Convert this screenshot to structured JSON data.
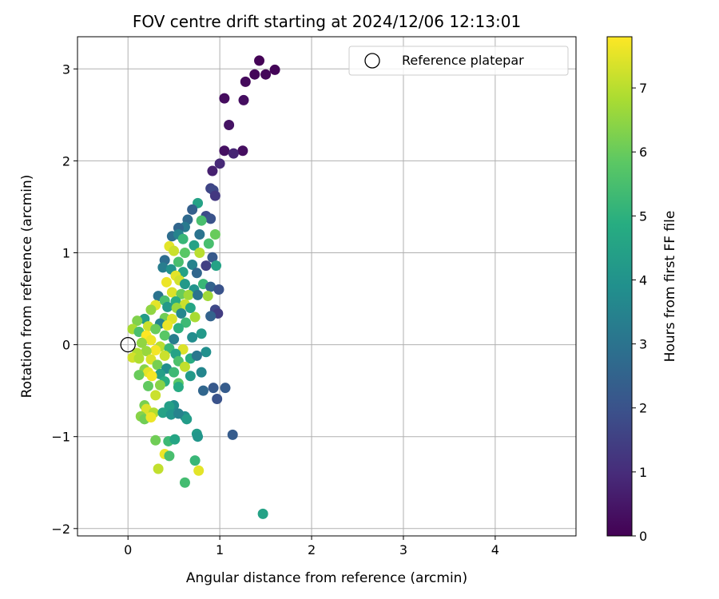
{
  "chart_data": {
    "type": "scatter",
    "title": "FOV centre drift starting at 2024/12/06 12:13:01",
    "xlabel": "Angular distance from reference (arcmin)",
    "ylabel": "Rotation from reference (arcmin)",
    "xlim": [
      -0.55,
      4.88
    ],
    "ylim": [
      -2.08,
      3.35
    ],
    "xticks": [
      0,
      1,
      2,
      3,
      4
    ],
    "yticks": [
      -2,
      -1,
      0,
      1,
      2,
      3
    ],
    "xtick_labels": [
      "0",
      "1",
      "2",
      "3",
      "4"
    ],
    "ytick_labels": [
      "−2",
      "−1",
      "0",
      "1",
      "2",
      "3"
    ],
    "grid": true,
    "legend": {
      "placement": "top-right",
      "entries": [
        {
          "label": "Reference platepar",
          "marker": "open-circle"
        }
      ]
    },
    "reference_point": {
      "x": 0,
      "y": 0
    },
    "colorbar": {
      "label": "Hours from first FF file",
      "min": 0,
      "max": 7.8,
      "ticks": [
        0,
        1,
        2,
        3,
        4,
        5,
        6,
        7
      ],
      "tick_labels": [
        "0",
        "1",
        "2",
        "3",
        "4",
        "5",
        "6",
        "7"
      ],
      "colormap": "viridis"
    },
    "points": [
      [
        1.43,
        3.09,
        0.05
      ],
      [
        1.6,
        2.99,
        0.1
      ],
      [
        1.5,
        2.94,
        0.15
      ],
      [
        1.38,
        2.94,
        0.1
      ],
      [
        1.28,
        2.86,
        0.2
      ],
      [
        1.05,
        2.68,
        0.25
      ],
      [
        1.26,
        2.66,
        0.3
      ],
      [
        1.1,
        2.39,
        0.4
      ],
      [
        1.05,
        2.11,
        0.35
      ],
      [
        1.25,
        2.11,
        0.3
      ],
      [
        1.15,
        2.08,
        0.8
      ],
      [
        1.0,
        1.97,
        0.9
      ],
      [
        0.92,
        1.89,
        0.7
      ],
      [
        0.9,
        1.7,
        1.6
      ],
      [
        0.93,
        1.68,
        1.7
      ],
      [
        0.95,
        1.62,
        1.3
      ],
      [
        0.76,
        1.54,
        4.5
      ],
      [
        0.7,
        1.47,
        2.4
      ],
      [
        0.85,
        1.4,
        1.8
      ],
      [
        0.9,
        1.37,
        2.0
      ],
      [
        0.65,
        1.36,
        2.7
      ],
      [
        0.8,
        1.35,
        5.5
      ],
      [
        0.62,
        1.28,
        3.2
      ],
      [
        0.55,
        1.27,
        2.6
      ],
      [
        0.48,
        1.18,
        2.8
      ],
      [
        0.55,
        1.2,
        3.5
      ],
      [
        0.78,
        1.2,
        3.0
      ],
      [
        0.95,
        1.2,
        6.0
      ],
      [
        0.6,
        1.15,
        5.2
      ],
      [
        0.72,
        1.08,
        4.5
      ],
      [
        0.45,
        1.07,
        7.5
      ],
      [
        0.88,
        1.1,
        5.5
      ],
      [
        0.5,
        1.02,
        7.2
      ],
      [
        0.62,
        1.0,
        5.8
      ],
      [
        0.78,
        1.0,
        7.0
      ],
      [
        0.92,
        0.95,
        2.2
      ],
      [
        0.4,
        0.92,
        2.8
      ],
      [
        0.55,
        0.9,
        5.5
      ],
      [
        0.7,
        0.87,
        3.5
      ],
      [
        0.85,
        0.86,
        1.5
      ],
      [
        0.96,
        0.86,
        4.5
      ],
      [
        0.38,
        0.84,
        3.3
      ],
      [
        0.47,
        0.82,
        4.0
      ],
      [
        0.6,
        0.79,
        4.5
      ],
      [
        0.75,
        0.78,
        2.6
      ],
      [
        0.52,
        0.75,
        7.5
      ],
      [
        0.56,
        0.7,
        7.3
      ],
      [
        0.62,
        0.66,
        4.2
      ],
      [
        0.42,
        0.68,
        7.6
      ],
      [
        0.82,
        0.66,
        5.2
      ],
      [
        0.9,
        0.63,
        2.5
      ],
      [
        0.99,
        0.6,
        2.0
      ],
      [
        0.72,
        0.6,
        4.0
      ],
      [
        0.48,
        0.57,
        7.4
      ],
      [
        0.58,
        0.55,
        6.0
      ],
      [
        0.66,
        0.54,
        6.7
      ],
      [
        0.76,
        0.54,
        3.0
      ],
      [
        0.87,
        0.53,
        6.7
      ],
      [
        0.33,
        0.53,
        3.0
      ],
      [
        0.4,
        0.48,
        5.5
      ],
      [
        0.52,
        0.47,
        4.8
      ],
      [
        0.62,
        0.44,
        7.2
      ],
      [
        0.3,
        0.43,
        7.5
      ],
      [
        0.43,
        0.41,
        4.2
      ],
      [
        0.53,
        0.4,
        6.6
      ],
      [
        0.68,
        0.4,
        4.6
      ],
      [
        0.95,
        0.38,
        1.7
      ],
      [
        0.25,
        0.38,
        6.5
      ],
      [
        0.98,
        0.34,
        1.4
      ],
      [
        0.9,
        0.31,
        2.5
      ],
      [
        0.58,
        0.34,
        3.6
      ],
      [
        0.73,
        0.3,
        6.8
      ],
      [
        0.18,
        0.28,
        4.3
      ],
      [
        0.4,
        0.29,
        6.1
      ],
      [
        0.48,
        0.28,
        7.4
      ],
      [
        0.1,
        0.26,
        6.3
      ],
      [
        0.63,
        0.24,
        5.3
      ],
      [
        0.35,
        0.23,
        3.5
      ],
      [
        0.43,
        0.21,
        7.6
      ],
      [
        0.22,
        0.2,
        7.2
      ],
      [
        0.55,
        0.18,
        5.0
      ],
      [
        0.05,
        0.17,
        6.8
      ],
      [
        0.3,
        0.17,
        6.0
      ],
      [
        0.12,
        0.14,
        5.5
      ],
      [
        0.8,
        0.12,
        4.2
      ],
      [
        0.2,
        0.1,
        7.8
      ],
      [
        0.4,
        0.1,
        5.8
      ],
      [
        0.7,
        0.08,
        3.8
      ],
      [
        0.5,
        0.06,
        3.3
      ],
      [
        0.25,
        0.05,
        7.6
      ],
      [
        0.15,
        0.02,
        6.5
      ],
      [
        0.35,
        -0.02,
        7.0
      ],
      [
        0.45,
        -0.04,
        5.2
      ],
      [
        0.6,
        -0.05,
        7.4
      ],
      [
        0.3,
        -0.06,
        7.7
      ],
      [
        0.2,
        -0.07,
        6.6
      ],
      [
        0.1,
        -0.09,
        6.9
      ],
      [
        0.52,
        -0.1,
        4.5
      ],
      [
        0.4,
        -0.12,
        7.2
      ],
      [
        0.05,
        -0.14,
        7.3
      ],
      [
        0.12,
        -0.15,
        6.9
      ],
      [
        0.85,
        -0.08,
        3.9
      ],
      [
        0.68,
        -0.15,
        4.8
      ],
      [
        0.75,
        -0.12,
        3.1
      ],
      [
        0.25,
        -0.16,
        7.4
      ],
      [
        0.55,
        -0.18,
        5.6
      ],
      [
        0.32,
        -0.22,
        6.2
      ],
      [
        0.62,
        -0.24,
        7.1
      ],
      [
        0.42,
        -0.26,
        3.8
      ],
      [
        0.18,
        -0.27,
        6.4
      ],
      [
        0.22,
        -0.3,
        7.5
      ],
      [
        0.5,
        -0.3,
        5.3
      ],
      [
        0.35,
        -0.32,
        4.4
      ],
      [
        0.12,
        -0.33,
        6.0
      ],
      [
        0.68,
        -0.34,
        4.2
      ],
      [
        0.26,
        -0.34,
        7.7
      ],
      [
        0.8,
        -0.3,
        3.6
      ],
      [
        0.4,
        -0.4,
        4.9
      ],
      [
        0.55,
        -0.42,
        5.8
      ],
      [
        0.22,
        -0.45,
        5.9
      ],
      [
        0.35,
        -0.44,
        6.4
      ],
      [
        0.82,
        -0.5,
        2.6
      ],
      [
        0.93,
        -0.47,
        2.2
      ],
      [
        1.06,
        -0.47,
        2.3
      ],
      [
        0.97,
        -0.59,
        2.0
      ],
      [
        0.3,
        -0.55,
        7.2
      ],
      [
        0.55,
        -0.46,
        4.8
      ],
      [
        0.5,
        -0.66,
        3.8
      ],
      [
        0.45,
        -0.67,
        4.4
      ],
      [
        0.18,
        -0.66,
        6.2
      ],
      [
        0.2,
        -0.7,
        7.4
      ],
      [
        0.28,
        -0.74,
        6.9
      ],
      [
        0.38,
        -0.74,
        4.5
      ],
      [
        0.47,
        -0.76,
        4.1
      ],
      [
        0.62,
        -0.78,
        3.9
      ],
      [
        0.14,
        -0.78,
        6.4
      ],
      [
        0.55,
        -0.75,
        3.5
      ],
      [
        0.64,
        -0.81,
        4.3
      ],
      [
        0.18,
        -0.81,
        6.1
      ],
      [
        0.25,
        -0.79,
        7.6
      ],
      [
        0.75,
        -0.97,
        4.3
      ],
      [
        0.76,
        -1.0,
        4.1
      ],
      [
        1.14,
        -0.98,
        2.3
      ],
      [
        0.3,
        -1.04,
        6.1
      ],
      [
        0.44,
        -1.05,
        5.3
      ],
      [
        0.51,
        -1.03,
        4.6
      ],
      [
        0.4,
        -1.19,
        7.6
      ],
      [
        0.45,
        -1.21,
        5.5
      ],
      [
        0.73,
        -1.26,
        5.2
      ],
      [
        0.33,
        -1.35,
        7.1
      ],
      [
        0.77,
        -1.37,
        7.5
      ],
      [
        0.62,
        -1.5,
        5.4
      ],
      [
        1.47,
        -1.84,
        4.5
      ]
    ]
  }
}
